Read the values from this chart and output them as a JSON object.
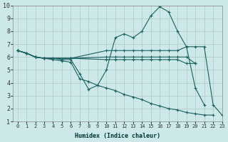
{
  "xlabel": "Humidex (Indice chaleur)",
  "ylabel": "",
  "bg_color": "#cde8e8",
  "grid_color": "#b0c8c8",
  "line_color": "#1a6060",
  "xlim": [
    -0.5,
    23
  ],
  "ylim": [
    1,
    10
  ],
  "xtick_labels": [
    "0",
    "1",
    "2",
    "3",
    "4",
    "5",
    "6",
    "7",
    "8",
    "9",
    "10",
    "11",
    "12",
    "13",
    "14",
    "15",
    "16",
    "17",
    "18",
    "19",
    "20",
    "21",
    "22",
    "23"
  ],
  "xticks": [
    0,
    1,
    2,
    3,
    4,
    5,
    6,
    7,
    8,
    9,
    10,
    11,
    12,
    13,
    14,
    15,
    16,
    17,
    18,
    19,
    20,
    21,
    22,
    23
  ],
  "yticks": [
    1,
    2,
    3,
    4,
    5,
    6,
    7,
    8,
    9,
    10
  ],
  "lines": [
    {
      "x": [
        0,
        1,
        2,
        3,
        4,
        5,
        6,
        7,
        8,
        9,
        10,
        11,
        12,
        13,
        14,
        15,
        16,
        17,
        18,
        19,
        20,
        21,
        22,
        23
      ],
      "y": [
        6.5,
        6.3,
        6.0,
        5.9,
        5.9,
        5.8,
        5.8,
        4.7,
        3.5,
        3.8,
        5.0,
        7.5,
        7.8,
        7.5,
        8.0,
        9.2,
        9.9,
        9.5,
        8.0,
        6.8,
        6.8,
        6.8,
        2.3,
        1.5
      ]
    },
    {
      "x": [
        0,
        1,
        2,
        3,
        6,
        10,
        11,
        12,
        13,
        14,
        15,
        16,
        17,
        18,
        19,
        20,
        21
      ],
      "y": [
        6.5,
        6.3,
        6.0,
        5.9,
        5.9,
        6.5,
        6.5,
        6.5,
        6.5,
        6.5,
        6.5,
        6.5,
        6.5,
        6.5,
        6.8,
        3.6,
        2.3
      ]
    },
    {
      "x": [
        0,
        1,
        2,
        3,
        6,
        10,
        11,
        12,
        13,
        14,
        15,
        16,
        17,
        18,
        19,
        20
      ],
      "y": [
        6.5,
        6.3,
        6.0,
        5.9,
        5.9,
        6.0,
        6.0,
        6.0,
        6.0,
        6.0,
        6.0,
        6.0,
        6.0,
        6.0,
        6.0,
        5.5
      ]
    },
    {
      "x": [
        0,
        1,
        2,
        3,
        4,
        5,
        6,
        7,
        8,
        9,
        10,
        11,
        12,
        13,
        14,
        15,
        16,
        17,
        18,
        19,
        20,
        21,
        22
      ],
      "y": [
        6.5,
        6.3,
        6.0,
        5.9,
        5.8,
        5.7,
        5.6,
        4.3,
        4.1,
        3.8,
        3.6,
        3.4,
        3.1,
        2.9,
        2.7,
        2.4,
        2.2,
        2.0,
        1.9,
        1.7,
        1.6,
        1.5,
        1.5
      ]
    },
    {
      "x": [
        0,
        1,
        2,
        3,
        6,
        10,
        11,
        12,
        13,
        14,
        15,
        16,
        17,
        18,
        19,
        20
      ],
      "y": [
        6.5,
        6.3,
        6.0,
        5.9,
        5.9,
        5.8,
        5.8,
        5.8,
        5.8,
        5.8,
        5.8,
        5.8,
        5.8,
        5.8,
        5.5,
        5.5
      ]
    }
  ]
}
